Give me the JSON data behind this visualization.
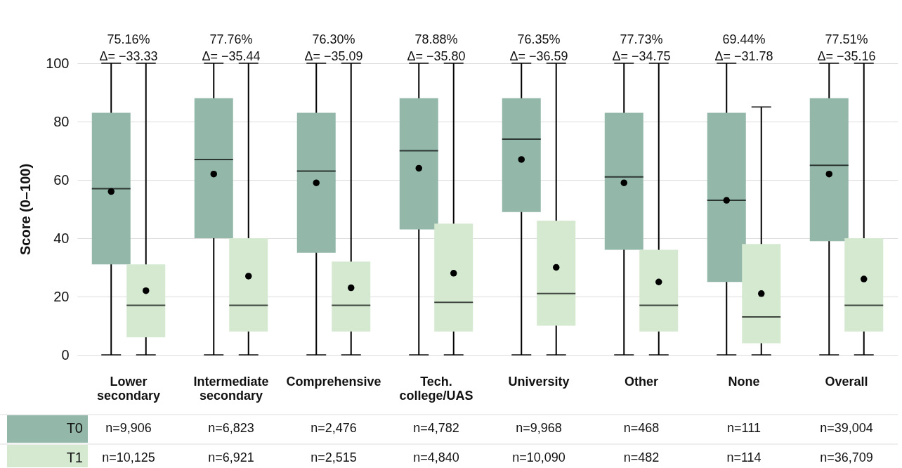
{
  "chart_data": {
    "type": "box",
    "ylabel": "Score (0–100)",
    "categories": [
      "Lower secondary",
      "Intermediate secondary",
      "Comprehensive",
      "Tech. college/UAS",
      "University",
      "Other",
      "None",
      "Overall"
    ],
    "ylim": [
      0,
      100
    ],
    "yticks": [
      0,
      20,
      40,
      60,
      80,
      100
    ],
    "grid": "y",
    "legend": "bottom",
    "series": [
      {
        "name": "T0",
        "color": "#93b8aa",
        "boxes": [
          {
            "low": 0,
            "q1": 31,
            "median": 57,
            "q3": 83,
            "high": 100,
            "mean": 56
          },
          {
            "low": 0,
            "q1": 40,
            "median": 67,
            "q3": 88,
            "high": 100,
            "mean": 62
          },
          {
            "low": 0,
            "q1": 35,
            "median": 63,
            "q3": 83,
            "high": 100,
            "mean": 59
          },
          {
            "low": 0,
            "q1": 43,
            "median": 70,
            "q3": 88,
            "high": 100,
            "mean": 64
          },
          {
            "low": 0,
            "q1": 49,
            "median": 74,
            "q3": 88,
            "high": 100,
            "mean": 67
          },
          {
            "low": 0,
            "q1": 36,
            "median": 61,
            "q3": 83,
            "high": 100,
            "mean": 59
          },
          {
            "low": 0,
            "q1": 25,
            "median": 53,
            "q3": 83,
            "high": 100,
            "mean": 53
          },
          {
            "low": 0,
            "q1": 39,
            "median": 65,
            "q3": 88,
            "high": 100,
            "mean": 62
          }
        ]
      },
      {
        "name": "T1",
        "color": "#d4e9d0",
        "boxes": [
          {
            "low": 0,
            "q1": 6,
            "median": 17,
            "q3": 31,
            "high": 100,
            "mean": 22
          },
          {
            "low": 0,
            "q1": 8,
            "median": 17,
            "q3": 40,
            "high": 100,
            "mean": 27
          },
          {
            "low": 0,
            "q1": 8,
            "median": 17,
            "q3": 32,
            "high": 100,
            "mean": 23
          },
          {
            "low": 0,
            "q1": 8,
            "median": 18,
            "q3": 45,
            "high": 100,
            "mean": 28
          },
          {
            "low": 0,
            "q1": 10,
            "median": 21,
            "q3": 46,
            "high": 100,
            "mean": 30
          },
          {
            "low": 0,
            "q1": 8,
            "median": 17,
            "q3": 36,
            "high": 100,
            "mean": 25
          },
          {
            "low": 0,
            "q1": 4,
            "median": 13,
            "q3": 38,
            "high": 85,
            "mean": 21
          },
          {
            "low": 0,
            "q1": 8,
            "median": 17,
            "q3": 40,
            "high": 100,
            "mean": 26
          }
        ]
      }
    ],
    "annotations": [
      "75.16%\nΔ= −33.33",
      "77.76%\nΔ= −35.44",
      "76.30%\nΔ= −35.09",
      "78.88%\nΔ= −35.80",
      "76.35%\nΔ= −36.59",
      "77.73%\nΔ= −34.75",
      "69.44%\nΔ= −31.78",
      "77.51%\nΔ= −35.16",
      "n=9,906",
      "n=6,823",
      "n=2,476",
      "n=4,782",
      "n=9,968",
      "n=468",
      "n=111",
      "n=39,004",
      "n=10,125",
      "n=6,921",
      "n=2,515",
      "n=4,840",
      "n=10,090",
      "n=482",
      "n=114",
      "n=36,709"
    ]
  }
}
